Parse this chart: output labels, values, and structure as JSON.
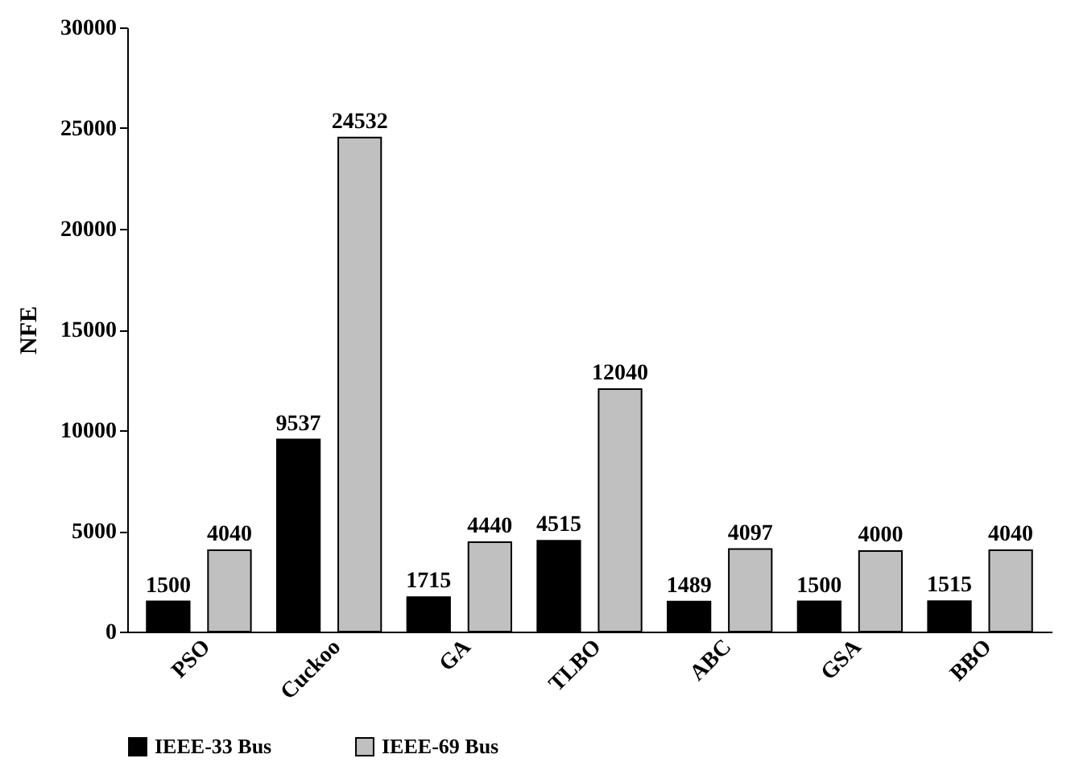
{
  "chart_data": {
    "type": "bar",
    "ylabel": "NFE",
    "categories": [
      "PSO",
      "Cuckoo",
      "GA",
      "TLBO",
      "ABC",
      "GSA",
      "BBO"
    ],
    "series": [
      {
        "name": "IEEE-33 Bus",
        "color": "#000000",
        "values": [
          1500,
          9537,
          1715,
          4515,
          1489,
          1500,
          1515
        ]
      },
      {
        "name": "IEEE-69 Bus",
        "color": "#c0c0c0",
        "values": [
          4040,
          24532,
          4440,
          12040,
          4097,
          4000,
          4040
        ]
      }
    ],
    "ylim": [
      0,
      30000
    ],
    "yticks": [
      0,
      5000,
      10000,
      15000,
      20000,
      25000,
      30000
    ],
    "grid": false,
    "legend": "bottom",
    "data_labels": true
  }
}
